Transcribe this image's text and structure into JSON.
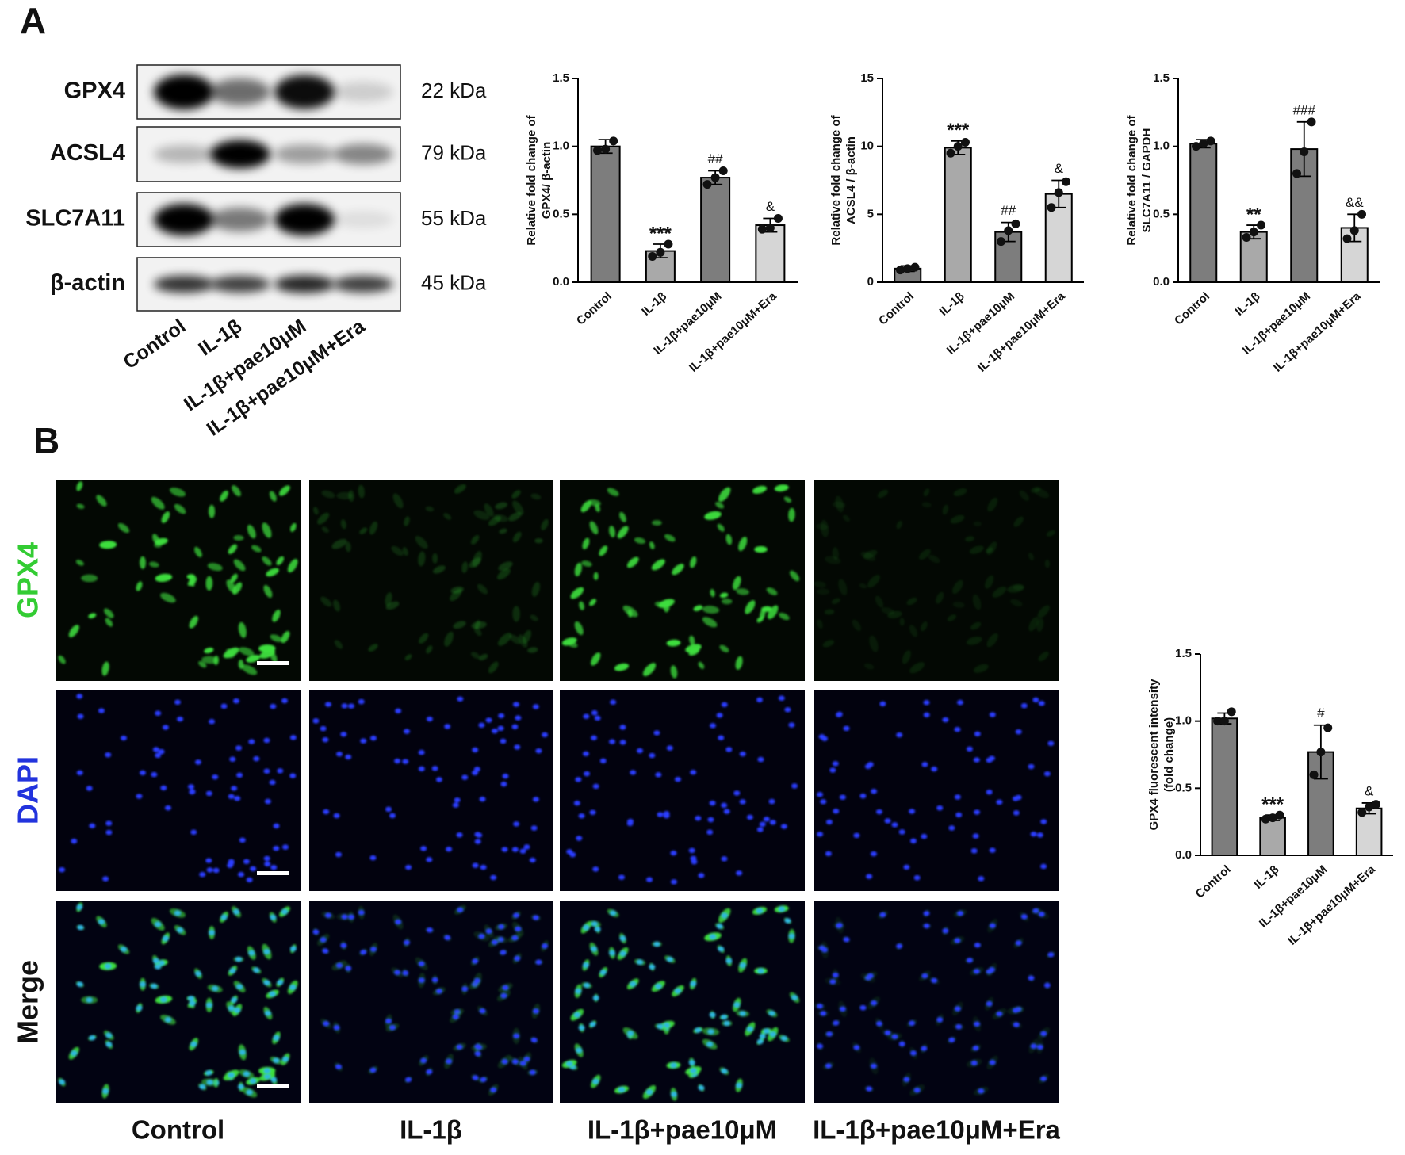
{
  "panel_labels": [
    "A",
    "B"
  ],
  "blot": {
    "proteins": [
      "GPX4",
      "ACSL4",
      "SLC7A11",
      "β-actin"
    ],
    "sizes": [
      "22 kDa",
      "79 kDa",
      "55 kDa",
      "45 kDa"
    ],
    "lanes": [
      "Control",
      "IL-1β",
      "IL-1β+pae10μM",
      "IL-1β+pae10μM+Era"
    ]
  },
  "imaging": {
    "rows": [
      "GPX4",
      "DAPI",
      "Merge"
    ],
    "columns": [
      "Control",
      "IL-1β",
      "IL-1β+pae10μM",
      "IL-1β+pae10μM+Era"
    ]
  },
  "chart_data": [
    {
      "type": "bar",
      "ylabel": [
        "Relative fold change of",
        "GPX4/ β-actin"
      ],
      "categories": [
        "Control",
        "IL-1β",
        "IL-1β+pae10μM",
        "IL-1β+pae10μM+Era"
      ],
      "values": [
        1.0,
        0.23,
        0.77,
        0.42
      ],
      "errors": [
        0.05,
        0.05,
        0.05,
        0.05
      ],
      "points": [
        [
          0.97,
          1.04,
          0.98
        ],
        [
          0.19,
          0.28,
          0.22
        ],
        [
          0.72,
          0.82,
          0.77
        ],
        [
          0.39,
          0.47,
          0.4
        ]
      ],
      "annotations": [
        null,
        "***",
        "##",
        "&"
      ],
      "colors": [
        "#7d7d7d",
        "#a9a9a9",
        "#7d7d7d",
        "#d6d6d6"
      ],
      "ylim": [
        0,
        1.5
      ],
      "yticks": [
        {
          "value": 0,
          "label": "0.0"
        },
        0.5,
        {
          "value": 1,
          "label": "1.0"
        },
        1.5
      ]
    },
    {
      "type": "bar",
      "ylabel": [
        "Relative fold change of",
        "ACSL4 / β-actin"
      ],
      "categories": [
        "Control",
        "IL-1β",
        "IL-1β+pae10μM",
        "IL-1β+pae10μM+Era"
      ],
      "values": [
        1.0,
        9.9,
        3.7,
        6.5
      ],
      "errors": [
        0.2,
        0.5,
        0.7,
        1.0
      ],
      "points": [
        [
          0.9,
          1.1,
          1.0
        ],
        [
          9.5,
          10.3,
          10.0
        ],
        [
          3.0,
          4.3,
          3.8
        ],
        [
          5.5,
          7.4,
          6.6
        ]
      ],
      "annotations": [
        null,
        "***",
        "##",
        "&"
      ],
      "colors": [
        "#7d7d7d",
        "#a9a9a9",
        "#7d7d7d",
        "#d6d6d6"
      ],
      "ylim": [
        0,
        15
      ],
      "yticks": [
        0,
        5,
        10,
        15
      ]
    },
    {
      "type": "bar",
      "ylabel": [
        "Relative fold change of",
        "SLC7A11 / GAPDH"
      ],
      "categories": [
        "Control",
        "IL-1β",
        "IL-1β+pae10μM",
        "IL-1β+pae10μM+Era"
      ],
      "values": [
        1.02,
        0.37,
        0.98,
        0.4
      ],
      "errors": [
        0.03,
        0.05,
        0.2,
        0.1
      ],
      "points": [
        [
          1.0,
          1.04,
          1.02
        ],
        [
          0.33,
          0.42,
          0.37
        ],
        [
          0.8,
          1.18,
          0.96
        ],
        [
          0.32,
          0.5,
          0.38
        ]
      ],
      "annotations": [
        null,
        "**",
        "###",
        "&&"
      ],
      "colors": [
        "#7d7d7d",
        "#a9a9a9",
        "#7d7d7d",
        "#d6d6d6"
      ],
      "ylim": [
        0,
        1.5
      ],
      "yticks": [
        {
          "value": 0,
          "label": "0.0"
        },
        0.5,
        {
          "value": 1,
          "label": "1.0"
        },
        1.5
      ]
    },
    {
      "type": "bar",
      "ylabel": [
        "GPX4 fluorescent intensity",
        "(fold change)"
      ],
      "categories": [
        "Control",
        "IL-1β",
        "IL-1β+pae10μM",
        "IL-1β+pae10μM+Era"
      ],
      "values": [
        1.02,
        0.28,
        0.77,
        0.35
      ],
      "errors": [
        0.04,
        0.02,
        0.2,
        0.04
      ],
      "points": [
        [
          1.0,
          1.07,
          1.0
        ],
        [
          0.27,
          0.3,
          0.28
        ],
        [
          0.6,
          0.95,
          0.77
        ],
        [
          0.32,
          0.38,
          0.36
        ]
      ],
      "annotations": [
        null,
        "***",
        "#",
        "&"
      ],
      "colors": [
        "#7d7d7d",
        "#a9a9a9",
        "#7d7d7d",
        "#d6d6d6"
      ],
      "ylim": [
        0,
        1.5
      ],
      "yticks": [
        {
          "value": 0,
          "label": "0.0"
        },
        0.5,
        {
          "value": 1,
          "label": "1.0"
        },
        1.5
      ]
    }
  ]
}
